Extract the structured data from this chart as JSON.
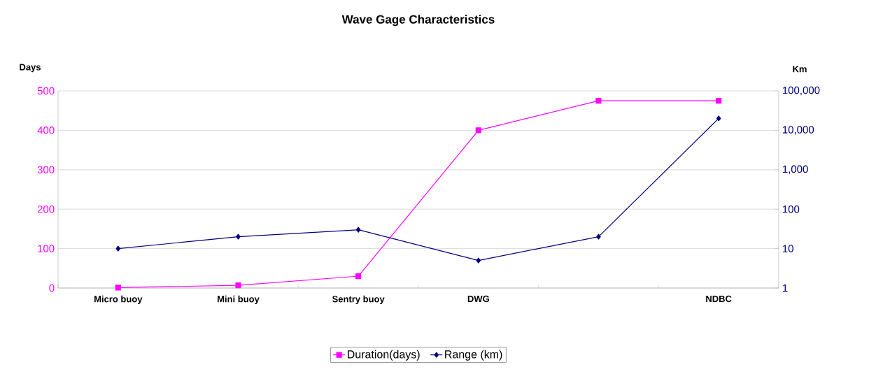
{
  "chart_data": {
    "type": "line",
    "title": "Wave Gage Characteristics",
    "ylabel": "Days",
    "y2label": "Km",
    "categories": [
      "Micro buoy",
      "Mini buoy",
      "Sentry buoy",
      "DWG",
      null,
      "NDBC"
    ],
    "series": [
      {
        "name": "Duration(days)",
        "color": "#ff00ff",
        "marker": "square",
        "values": [
          1,
          7,
          30,
          400,
          475,
          475
        ]
      },
      {
        "name": "Range (km)",
        "color": "#000080",
        "marker": "diamond",
        "axis": "y2",
        "values": [
          10,
          20,
          30,
          5,
          20,
          20000
        ]
      }
    ],
    "ylim": [
      0,
      500
    ],
    "yticks": [
      0,
      100,
      200,
      300,
      400,
      500
    ],
    "y2lim": [
      1,
      100000
    ],
    "y2ticks": [
      1,
      10,
      100,
      {
        "value": 1000,
        "label": "1,000"
      },
      {
        "value": 10000,
        "label": "10,000"
      },
      {
        "value": 100000,
        "label": "100,000"
      }
    ],
    "log": "y2",
    "grid": "y",
    "legend": "bottom"
  }
}
